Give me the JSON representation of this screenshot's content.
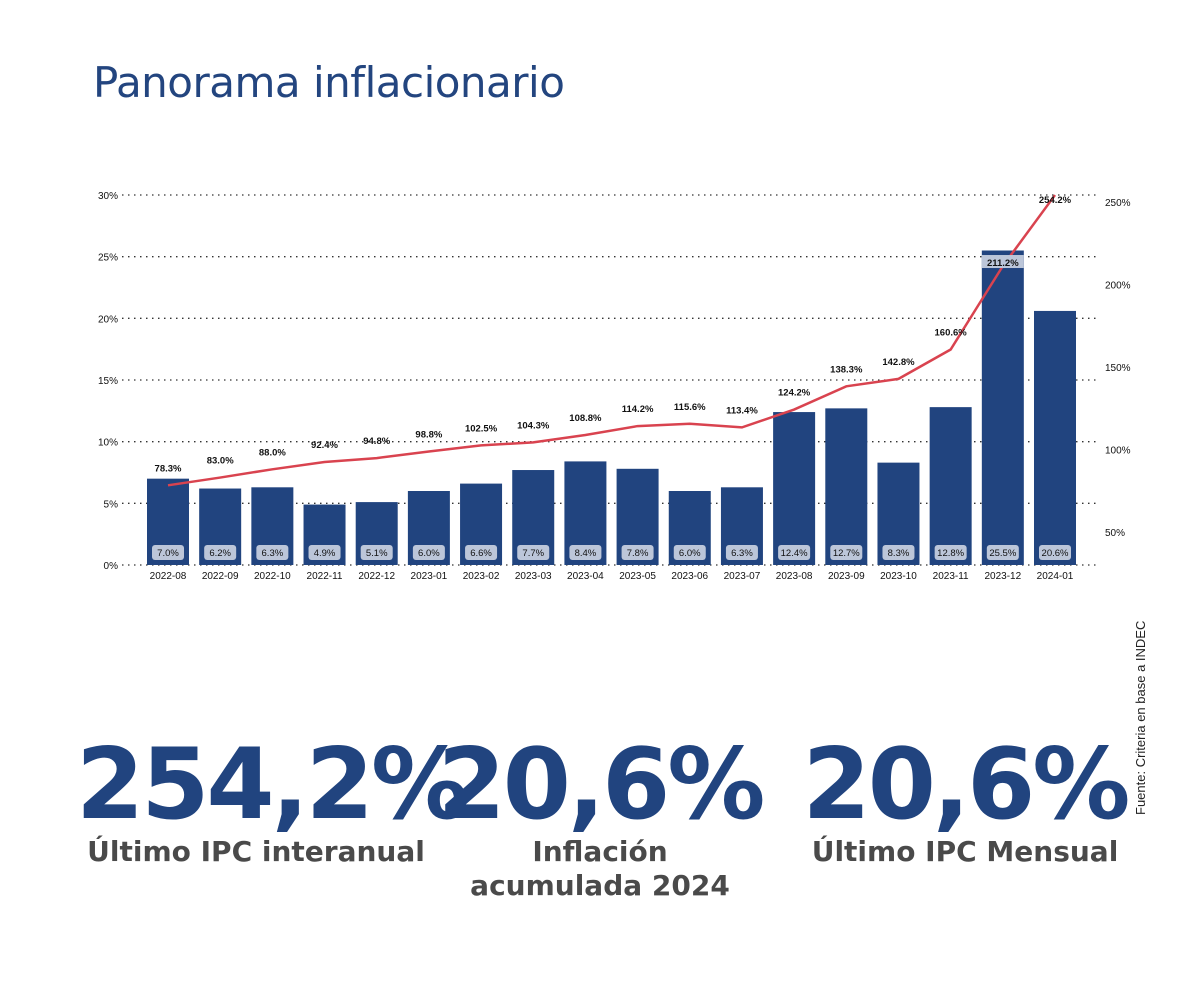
{
  "title": "Panorama inflacionario",
  "source": "Fuente: Criteria en base a INDEC",
  "chart_data": {
    "type": "bar+line",
    "categories": [
      "2022-08",
      "2022-09",
      "2022-10",
      "2022-11",
      "2022-12",
      "2023-01",
      "2023-02",
      "2023-03",
      "2023-04",
      "2023-05",
      "2023-06",
      "2023-07",
      "2023-08",
      "2023-09",
      "2023-10",
      "2023-11",
      "2023-12",
      "2024-01"
    ],
    "series": [
      {
        "type": "bar",
        "axis": "left",
        "values": [
          7.0,
          6.2,
          6.3,
          4.9,
          5.1,
          6.0,
          6.6,
          7.7,
          8.4,
          7.8,
          6.0,
          6.3,
          12.4,
          12.7,
          8.3,
          12.8,
          25.5,
          20.6
        ],
        "color": "#21447f"
      },
      {
        "type": "line",
        "axis": "right",
        "values": [
          78.3,
          83.0,
          88.0,
          92.4,
          94.8,
          98.8,
          102.5,
          104.3,
          108.8,
          114.2,
          115.6,
          113.4,
          124.2,
          138.3,
          142.8,
          160.6,
          211.2,
          254.2
        ],
        "color": "#d9434f"
      }
    ],
    "left_axis": {
      "ticks": [
        "0%",
        "5%",
        "10%",
        "15%",
        "20%",
        "25%",
        "30%"
      ],
      "range": [
        0,
        30
      ]
    },
    "right_axis": {
      "ticks": [
        "50%",
        "100%",
        "150%",
        "200%",
        "250%"
      ],
      "range": [
        30,
        255
      ]
    },
    "grid": true
  },
  "kpis": [
    {
      "value": "254,2%",
      "label": "Último IPC interanual"
    },
    {
      "value": "20,6%",
      "label": "Inflación acumulada 2024"
    },
    {
      "value": "20,6%",
      "label": "Último IPC Mensual"
    }
  ]
}
